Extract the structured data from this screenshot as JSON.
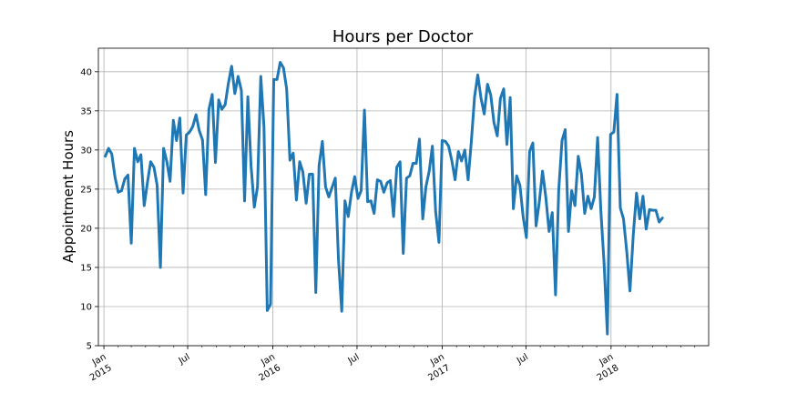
{
  "chart_data": {
    "type": "line",
    "title": "Hours per Doctor",
    "xlabel": "",
    "ylabel": "Appointment Hours",
    "ylim": [
      5,
      43
    ],
    "xlim": [
      "2014-12-20",
      "2018-07-31"
    ],
    "grid": true,
    "line_color": "#1f77b4",
    "y_ticks": [
      5,
      10,
      15,
      20,
      25,
      30,
      35,
      40
    ],
    "x_ticks": [
      {
        "date": "2015-01-01",
        "label": "Jan",
        "label2": "2015"
      },
      {
        "date": "2015-07-01",
        "label": "Jul",
        "label2": ""
      },
      {
        "date": "2016-01-01",
        "label": "Jan",
        "label2": "2016"
      },
      {
        "date": "2016-07-01",
        "label": "Jul",
        "label2": ""
      },
      {
        "date": "2017-01-01",
        "label": "Jan",
        "label2": "2017"
      },
      {
        "date": "2017-07-01",
        "label": "Jul",
        "label2": ""
      },
      {
        "date": "2018-01-01",
        "label": "Jan",
        "label2": "2018"
      }
    ],
    "series": [
      {
        "values": [
          [
            "2015-01-04",
            29.2
          ],
          [
            "2015-01-11",
            30.2
          ],
          [
            "2015-01-18",
            29.5
          ],
          [
            "2015-01-25",
            26.5
          ],
          [
            "2015-02-01",
            24.6
          ],
          [
            "2015-02-08",
            24.8
          ],
          [
            "2015-02-15",
            26.3
          ],
          [
            "2015-02-22",
            26.8
          ],
          [
            "2015-03-01",
            18.1
          ],
          [
            "2015-03-08",
            30.2
          ],
          [
            "2015-03-15",
            28.5
          ],
          [
            "2015-03-22",
            29.4
          ],
          [
            "2015-03-29",
            22.9
          ],
          [
            "2015-04-05",
            25.8
          ],
          [
            "2015-04-12",
            28.5
          ],
          [
            "2015-04-19",
            27.8
          ],
          [
            "2015-04-26",
            25.5
          ],
          [
            "2015-05-03",
            15.0
          ],
          [
            "2015-05-10",
            30.2
          ],
          [
            "2015-05-17",
            28.5
          ],
          [
            "2015-05-24",
            26.0
          ],
          [
            "2015-05-31",
            33.8
          ],
          [
            "2015-06-07",
            31.2
          ],
          [
            "2015-06-14",
            34.1
          ],
          [
            "2015-06-21",
            24.5
          ],
          [
            "2015-06-28",
            31.9
          ],
          [
            "2015-07-05",
            32.3
          ],
          [
            "2015-07-12",
            33.0
          ],
          [
            "2015-07-19",
            34.5
          ],
          [
            "2015-07-26",
            32.5
          ],
          [
            "2015-08-02",
            31.3
          ],
          [
            "2015-08-09",
            24.3
          ],
          [
            "2015-08-16",
            35.2
          ],
          [
            "2015-08-23",
            37.1
          ],
          [
            "2015-08-30",
            28.4
          ],
          [
            "2015-09-06",
            36.4
          ],
          [
            "2015-09-13",
            35.2
          ],
          [
            "2015-09-20",
            35.8
          ],
          [
            "2015-09-27",
            38.5
          ],
          [
            "2015-10-04",
            40.7
          ],
          [
            "2015-10-11",
            37.2
          ],
          [
            "2015-10-18",
            39.4
          ],
          [
            "2015-10-25",
            37.6
          ],
          [
            "2015-11-01",
            23.5
          ],
          [
            "2015-11-08",
            36.8
          ],
          [
            "2015-11-15",
            28.0
          ],
          [
            "2015-11-22",
            22.7
          ],
          [
            "2015-11-29",
            25.3
          ],
          [
            "2015-12-06",
            39.4
          ],
          [
            "2015-12-13",
            33.0
          ],
          [
            "2015-12-20",
            9.5
          ],
          [
            "2015-12-27",
            10.3
          ],
          [
            "2016-01-03",
            39.0
          ],
          [
            "2016-01-10",
            39.0
          ],
          [
            "2016-01-17",
            41.2
          ],
          [
            "2016-01-24",
            40.5
          ],
          [
            "2016-01-31",
            37.8
          ],
          [
            "2016-02-07",
            28.7
          ],
          [
            "2016-02-14",
            29.6
          ],
          [
            "2016-02-21",
            23.6
          ],
          [
            "2016-02-28",
            28.5
          ],
          [
            "2016-03-06",
            27.2
          ],
          [
            "2016-03-13",
            23.2
          ],
          [
            "2016-03-20",
            26.9
          ],
          [
            "2016-03-27",
            26.9
          ],
          [
            "2016-04-03",
            11.8
          ],
          [
            "2016-04-10",
            28.0
          ],
          [
            "2016-04-17",
            31.1
          ],
          [
            "2016-04-24",
            25.3
          ],
          [
            "2016-05-01",
            24.0
          ],
          [
            "2016-05-08",
            25.2
          ],
          [
            "2016-05-15",
            26.4
          ],
          [
            "2016-05-22",
            16.0
          ],
          [
            "2016-05-29",
            9.4
          ],
          [
            "2016-06-05",
            23.5
          ],
          [
            "2016-06-12",
            21.5
          ],
          [
            "2016-06-19",
            24.6
          ],
          [
            "2016-06-26",
            26.6
          ],
          [
            "2016-07-03",
            23.8
          ],
          [
            "2016-07-10",
            24.8
          ],
          [
            "2016-07-17",
            35.1
          ],
          [
            "2016-07-24",
            23.4
          ],
          [
            "2016-07-31",
            23.5
          ],
          [
            "2016-08-07",
            21.9
          ],
          [
            "2016-08-14",
            26.2
          ],
          [
            "2016-08-21",
            26.0
          ],
          [
            "2016-08-28",
            24.6
          ],
          [
            "2016-09-04",
            25.8
          ],
          [
            "2016-09-11",
            26.1
          ],
          [
            "2016-09-18",
            21.5
          ],
          [
            "2016-09-25",
            27.8
          ],
          [
            "2016-10-02",
            28.5
          ],
          [
            "2016-10-09",
            16.8
          ],
          [
            "2016-10-16",
            26.4
          ],
          [
            "2016-10-23",
            26.7
          ],
          [
            "2016-10-30",
            28.3
          ],
          [
            "2016-11-06",
            28.3
          ],
          [
            "2016-11-13",
            31.4
          ],
          [
            "2016-11-20",
            21.2
          ],
          [
            "2016-11-27",
            25.3
          ],
          [
            "2016-12-04",
            27.3
          ],
          [
            "2016-12-11",
            30.5
          ],
          [
            "2016-12-18",
            22.1
          ],
          [
            "2016-12-25",
            18.2
          ],
          [
            "2017-01-01",
            31.2
          ],
          [
            "2017-01-08",
            31.1
          ],
          [
            "2017-01-15",
            30.5
          ],
          [
            "2017-01-22",
            28.6
          ],
          [
            "2017-01-29",
            26.2
          ],
          [
            "2017-02-05",
            29.8
          ],
          [
            "2017-02-12",
            28.6
          ],
          [
            "2017-02-19",
            30.0
          ],
          [
            "2017-02-26",
            26.2
          ],
          [
            "2017-03-05",
            31.0
          ],
          [
            "2017-03-12",
            36.8
          ],
          [
            "2017-03-19",
            39.6
          ],
          [
            "2017-03-26",
            36.6
          ],
          [
            "2017-04-02",
            34.6
          ],
          [
            "2017-04-09",
            38.4
          ],
          [
            "2017-04-16",
            37.0
          ],
          [
            "2017-04-23",
            33.5
          ],
          [
            "2017-04-30",
            31.8
          ],
          [
            "2017-05-07",
            36.6
          ],
          [
            "2017-05-14",
            37.8
          ],
          [
            "2017-05-21",
            30.7
          ],
          [
            "2017-05-28",
            36.7
          ],
          [
            "2017-06-04",
            22.5
          ],
          [
            "2017-06-11",
            26.7
          ],
          [
            "2017-06-18",
            25.5
          ],
          [
            "2017-06-25",
            21.5
          ],
          [
            "2017-07-02",
            18.8
          ],
          [
            "2017-07-09",
            29.8
          ],
          [
            "2017-07-16",
            30.9
          ],
          [
            "2017-07-23",
            20.3
          ],
          [
            "2017-07-30",
            23.4
          ],
          [
            "2017-08-06",
            27.3
          ],
          [
            "2017-08-13",
            24.0
          ],
          [
            "2017-08-20",
            19.6
          ],
          [
            "2017-08-27",
            22.0
          ],
          [
            "2017-09-03",
            11.5
          ],
          [
            "2017-09-10",
            24.9
          ],
          [
            "2017-09-17",
            31.2
          ],
          [
            "2017-09-24",
            32.6
          ],
          [
            "2017-10-01",
            19.6
          ],
          [
            "2017-10-08",
            24.8
          ],
          [
            "2017-10-15",
            22.9
          ],
          [
            "2017-10-22",
            29.2
          ],
          [
            "2017-10-29",
            26.9
          ],
          [
            "2017-11-05",
            21.9
          ],
          [
            "2017-11-12",
            24.1
          ],
          [
            "2017-11-19",
            22.5
          ],
          [
            "2017-11-26",
            24.0
          ],
          [
            "2017-12-03",
            31.6
          ],
          [
            "2017-12-10",
            22.3
          ],
          [
            "2017-12-17",
            15.5
          ],
          [
            "2017-12-24",
            6.5
          ],
          [
            "2017-12-31",
            32.0
          ],
          [
            "2018-01-07",
            32.3
          ],
          [
            "2018-01-14",
            37.1
          ],
          [
            "2018-01-21",
            22.6
          ],
          [
            "2018-01-28",
            21.2
          ],
          [
            "2018-02-04",
            17.0
          ],
          [
            "2018-02-11",
            12.0
          ],
          [
            "2018-02-18",
            19.1
          ],
          [
            "2018-02-25",
            24.5
          ],
          [
            "2018-03-04",
            21.2
          ],
          [
            "2018-03-11",
            24.1
          ],
          [
            "2018-03-18",
            19.9
          ],
          [
            "2018-03-25",
            22.4
          ],
          [
            "2018-04-01",
            22.3
          ],
          [
            "2018-04-08",
            22.3
          ],
          [
            "2018-04-15",
            20.8
          ],
          [
            "2018-04-22",
            21.3
          ]
        ]
      }
    ]
  }
}
